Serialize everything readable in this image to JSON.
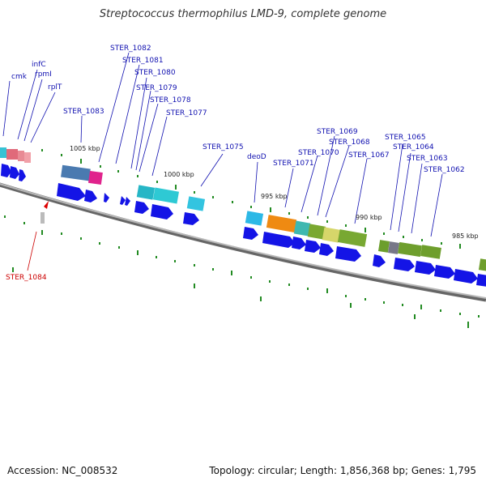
{
  "title": "Streptococcus thermophilus LMD-9, complete genome",
  "accession": "Accession: NC_008532",
  "summary": "Topology: circular; Length: 1,856,368 bp; Genes: 1,795",
  "colors": {
    "gene_label": "#1010b0",
    "highlight_label": "#cc0000",
    "cds_arrow": "#1414e6",
    "backbone": "#8a8a8a",
    "tick": "#228b22"
  },
  "gene_labels": [
    {
      "id": "cmk",
      "text": "cmk",
      "highlight": false
    },
    {
      "id": "infC",
      "text": "infC",
      "highlight": false
    },
    {
      "id": "rpmI",
      "text": "rpmI",
      "highlight": false
    },
    {
      "id": "rplT",
      "text": "rplT",
      "highlight": false
    },
    {
      "id": "STER_1082",
      "text": "STER_1082",
      "highlight": false
    },
    {
      "id": "STER_1081",
      "text": "STER_1081",
      "highlight": false
    },
    {
      "id": "STER_1080",
      "text": "STER_1080",
      "highlight": false
    },
    {
      "id": "STER_1079",
      "text": "STER_1079",
      "highlight": false
    },
    {
      "id": "STER_1078",
      "text": "STER_1078",
      "highlight": false
    },
    {
      "id": "STER_1077",
      "text": "STER_1077",
      "highlight": false
    },
    {
      "id": "STER_1083",
      "text": "STER_1083",
      "highlight": false
    },
    {
      "id": "STER_1075",
      "text": "STER_1075",
      "highlight": false
    },
    {
      "id": "deoD",
      "text": "deoD",
      "highlight": false
    },
    {
      "id": "STER_1071",
      "text": "STER_1071",
      "highlight": false
    },
    {
      "id": "STER_1070",
      "text": "STER_1070",
      "highlight": false
    },
    {
      "id": "STER_1069",
      "text": "STER_1069",
      "highlight": false
    },
    {
      "id": "STER_1068",
      "text": "STER_1068",
      "highlight": false
    },
    {
      "id": "STER_1067",
      "text": "STER_1067",
      "highlight": false
    },
    {
      "id": "STER_1065",
      "text": "STER_1065",
      "highlight": false
    },
    {
      "id": "STER_1064",
      "text": "STER_1064",
      "highlight": false
    },
    {
      "id": "STER_1063",
      "text": "STER_1063",
      "highlight": false
    },
    {
      "id": "STER_1062",
      "text": "STER_1062",
      "highlight": false
    },
    {
      "id": "STER_1084",
      "text": "STER_1084",
      "highlight": true
    }
  ],
  "tick_labels": [
    "1005 kbp",
    "1000 kbp",
    "995 kbp",
    "990 kbp",
    "985 kbp"
  ]
}
